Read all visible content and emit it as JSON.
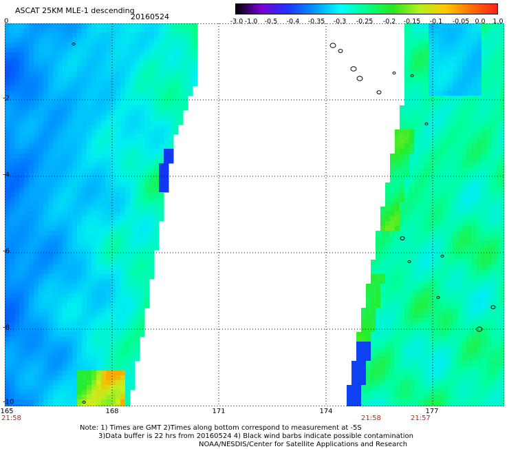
{
  "header": {
    "title": "ASCAT 25KM MLE-1 descending",
    "date": "20160524"
  },
  "colorbar": {
    "labels": [
      "-3.0",
      "-1.0",
      "-0.5",
      "-0.4",
      "-0.35",
      "-0.3",
      "-0.25",
      "-0.2",
      "-0.15",
      "-0.1",
      "-0.05",
      "0.0",
      "1.0"
    ],
    "colors": [
      "#000000",
      "#7a00d6",
      "#1e32ff",
      "#0096ff",
      "#00ffff",
      "#00ff8c",
      "#28e61e",
      "#b4f01e",
      "#ffc800",
      "#ff6e00",
      "#ff1e1e"
    ]
  },
  "axes": {
    "y_ticks": [
      "0",
      "-2",
      "-4",
      "-6",
      "-8",
      "-10"
    ],
    "x_ticks": [
      "165",
      "168",
      "171",
      "174",
      "177"
    ],
    "x_range": [
      165,
      178.5
    ],
    "y_range": [
      0,
      -10
    ],
    "times": [
      {
        "label": "21:58",
        "at": 165
      },
      {
        "label": "21:58",
        "at": 175
      },
      {
        "label": "21:57",
        "at": 176.7
      }
    ]
  },
  "notes": {
    "line1": "Note: 1) Times are GMT 2)Times along bottom correspond to measurement at -5S",
    "line2": "3)Data buffer is 22 hrs from 20160524 4) Black wind barbs indicate possible contamination",
    "line3": "NOAA/NESDIS/Center for Satellite Applications and Research"
  }
}
